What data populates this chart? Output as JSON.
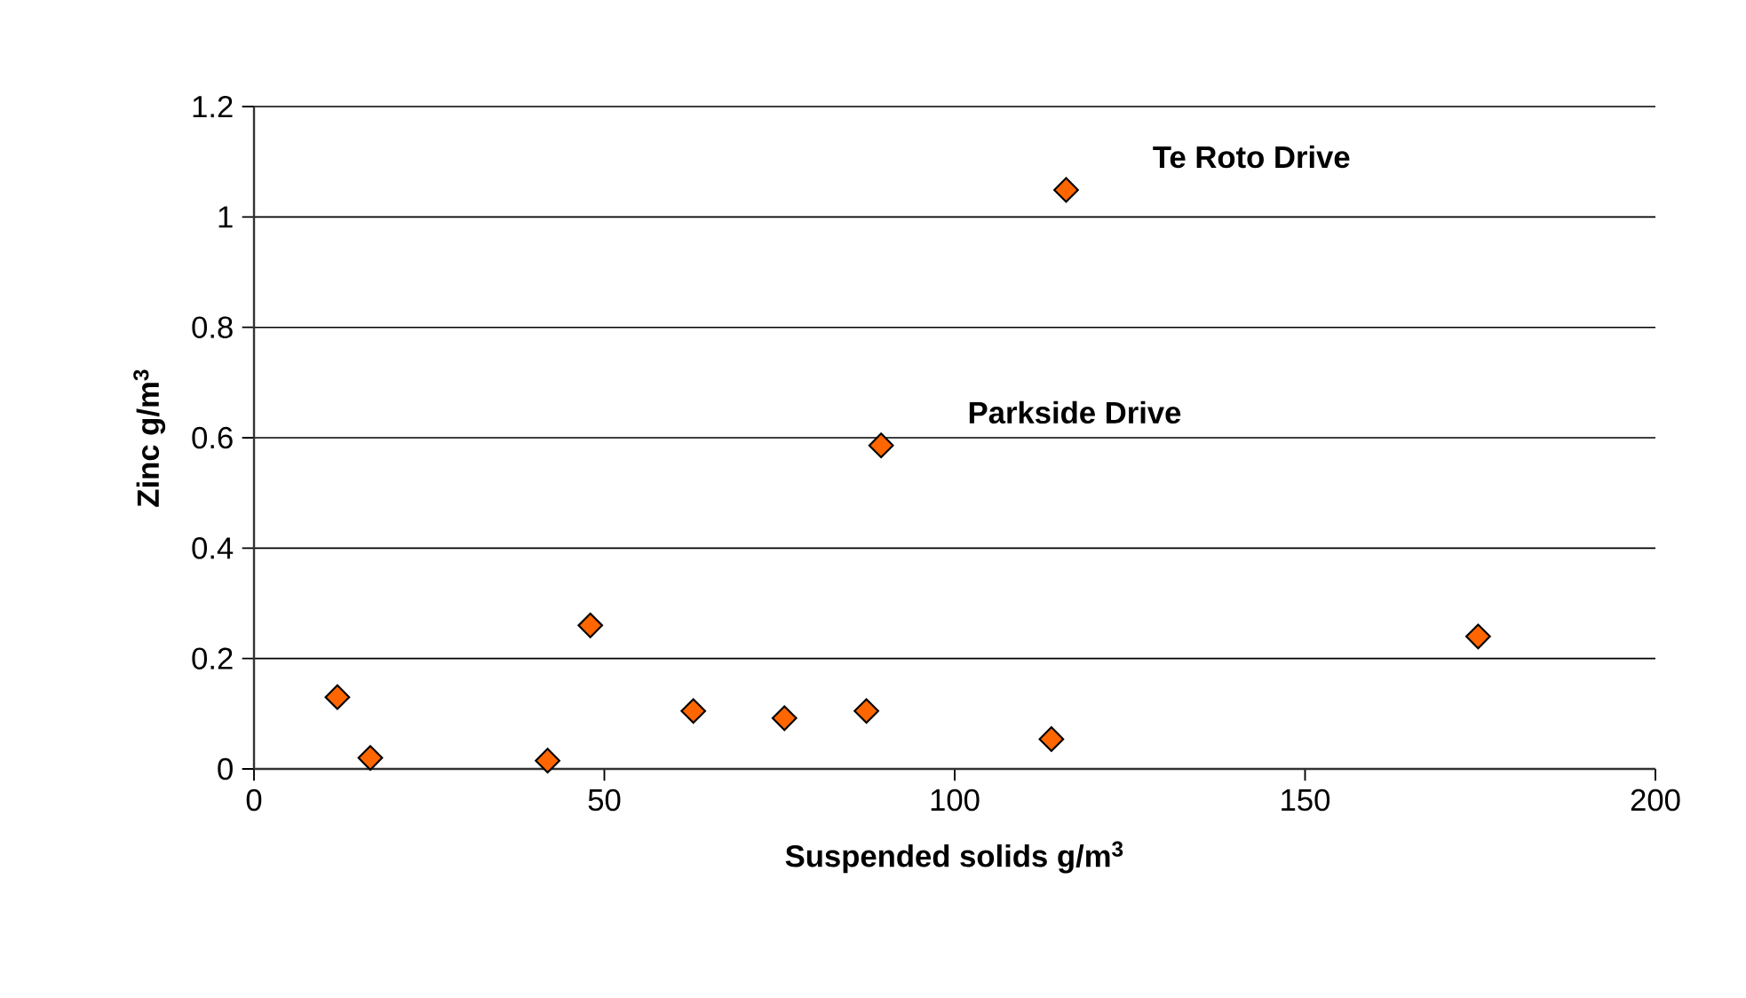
{
  "chart_data": {
    "type": "scatter",
    "xlabel": "Suspended solids g/m$^{3}$",
    "ylabel": "Zinc g/m$^{3}$",
    "x": [
      11.9,
      16.6,
      41.9,
      48.0,
      62.7,
      75.7,
      87.4,
      89.5,
      113.8,
      115.9,
      174.7
    ],
    "series": [
      {
        "color": "#ff6600",
        "values": [
          0.13,
          0.02,
          0.015,
          0.26,
          0.105,
          0.092,
          0.105,
          0.586,
          0.054,
          1.049,
          0.24
        ]
      }
    ],
    "xlim": [
      0,
      200
    ],
    "xticks": [
      0,
      50,
      100,
      150,
      200
    ],
    "ylim": [
      0,
      1.2
    ],
    "yticks": [
      0,
      0.2,
      0.4,
      0.6,
      0.8,
      1,
      1.2
    ],
    "grid": "y",
    "marker": "diamond",
    "annotations": [
      {
        "text": "Te Roto Drive",
        "x": 115.9,
        "y": 1.049
      },
      {
        "text": "Parkside Drive",
        "x": 89.5,
        "y": 0.586
      }
    ]
  }
}
